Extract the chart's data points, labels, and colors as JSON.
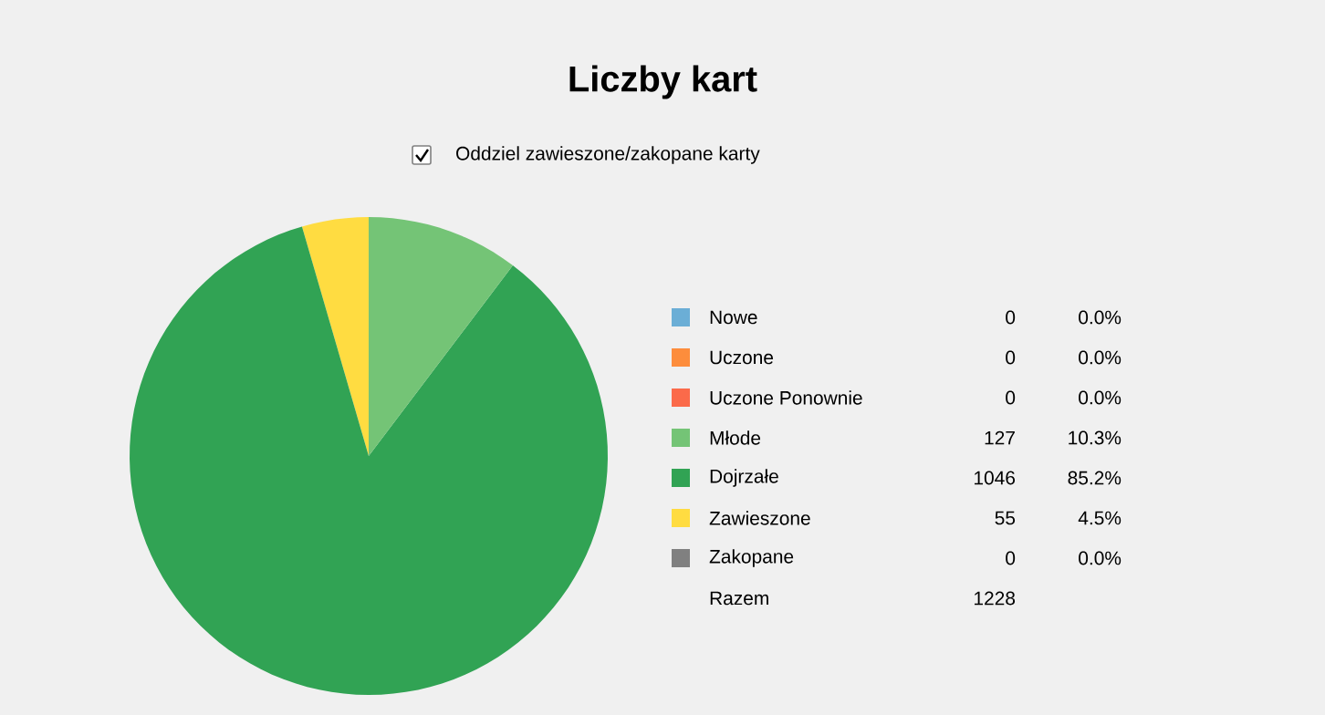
{
  "chart_data": {
    "type": "pie",
    "title": "Liczby kart",
    "subtitle": "Oddziel zawieszone/zakopane karty",
    "categories": [
      "Nowe",
      "Uczone",
      "Uczone Ponownie",
      "Młode",
      "Dojrzałe",
      "Zawieszone",
      "Zakopane"
    ],
    "values": [
      0,
      0,
      0,
      10.3,
      85.2,
      4.5,
      0
    ],
    "value_labels": [
      "0.0%",
      "0.0%",
      "0.0%",
      "10.3%",
      "85.2%",
      "4.5%",
      "0.0%"
    ],
    "colors": [
      "#6baed6",
      "#fd8d3c",
      "#fb6a4a",
      "#74c476",
      "#31a354",
      "#ffdc41",
      "#808080"
    ],
    "legend": "right",
    "annotations": [
      "0",
      "0",
      "0",
      "127",
      "1046",
      "55",
      "0",
      "Razem",
      "1228"
    ]
  }
}
